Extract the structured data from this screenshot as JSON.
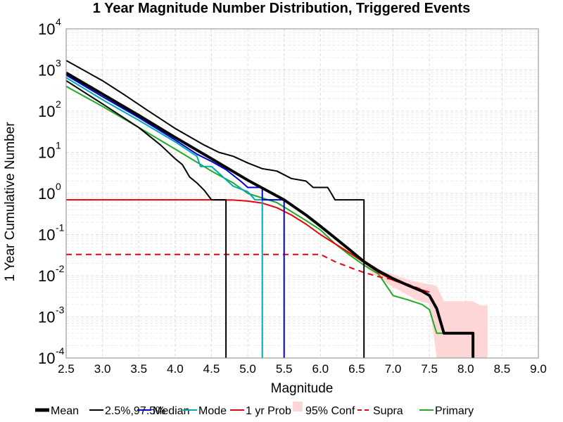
{
  "chart_data": {
    "type": "line",
    "title": "1 Year Magnitude Number Distribution, Triggered Events",
    "xlabel": "Magnitude",
    "ylabel": "1 Year Cumulative Number",
    "xlim": [
      2.5,
      9.0
    ],
    "ylim": [
      0.0001,
      10000
    ],
    "yscale": "log",
    "grid": true,
    "legend_position": "bottom",
    "x_ticks": [
      "2.5",
      "3.0",
      "3.5",
      "4.0",
      "4.5",
      "5.0",
      "5.5",
      "6.0",
      "6.5",
      "7.0",
      "7.5",
      "8.0",
      "8.5",
      "9.0"
    ],
    "y_ticks": [
      {
        "base": "10",
        "exp": "-4"
      },
      {
        "base": "10",
        "exp": "-3"
      },
      {
        "base": "10",
        "exp": "-2"
      },
      {
        "base": "10",
        "exp": "-1"
      },
      {
        "base": "10",
        "exp": "0"
      },
      {
        "base": "10",
        "exp": "1"
      },
      {
        "base": "10",
        "exp": "2"
      },
      {
        "base": "10",
        "exp": "3"
      },
      {
        "base": "10",
        "exp": "4"
      }
    ],
    "band": {
      "name": "95% Conf",
      "color": "#ffd6d6",
      "x": [
        6.6,
        6.7,
        6.8,
        6.9,
        7.0,
        7.1,
        7.2,
        7.3,
        7.4,
        7.5,
        7.6,
        7.7,
        7.8,
        7.9,
        8.0,
        8.1,
        8.2,
        8.3
      ],
      "upper": [
        0.025,
        0.019,
        0.015,
        0.012,
        0.011,
        0.0092,
        0.0082,
        0.0072,
        0.0066,
        0.0062,
        0.0057,
        0.0024,
        0.0024,
        0.0024,
        0.0024,
        0.0024,
        0.0019,
        0.0019
      ],
      "lower": [
        0.018,
        0.012,
        0.009,
        0.0068,
        0.0053,
        0.0043,
        0.0034,
        0.0027,
        0.0023,
        0.0021,
        0.0001,
        0.0001,
        0.0001,
        0.0001,
        0.0001,
        0.0001,
        0.0001,
        0.0001
      ]
    },
    "series": [
      {
        "name": "Mean",
        "color": "#000000",
        "width": 4,
        "dash": "",
        "x": [
          2.5,
          3.0,
          3.5,
          4.0,
          4.5,
          5.0,
          5.5,
          5.8,
          6.0,
          6.2,
          6.4,
          6.6,
          6.8,
          7.0,
          7.2,
          7.4,
          7.5,
          7.6,
          7.7,
          8.1,
          8.1
        ],
        "y": [
          850,
          260,
          79,
          23,
          7.0,
          2.1,
          0.7,
          0.3,
          0.16,
          0.083,
          0.043,
          0.022,
          0.013,
          0.0085,
          0.0059,
          0.0042,
          0.0033,
          0.0016,
          0.0004,
          0.0004,
          0.0001
        ]
      },
      {
        "name": "2.5%,97.5%",
        "color": "#000000",
        "width": 2,
        "dash": "",
        "x": [
          2.5,
          3.0,
          3.3,
          3.6,
          4.0,
          4.4,
          4.6,
          4.8,
          5.0,
          5.2,
          5.4,
          5.6,
          5.8,
          5.9,
          6.1,
          6.15,
          6.2,
          6.6,
          6.6
        ],
        "y": [
          1700,
          550,
          250,
          110,
          38,
          15,
          10,
          8,
          5.5,
          4.0,
          3.5,
          2.3,
          2.0,
          1.4,
          1.4,
          1.0,
          0.7,
          0.7,
          0.0001
        ]
      },
      {
        "name": "2.5%,97.5%",
        "color": "#000000",
        "width": 2,
        "dash": "",
        "x": [
          2.5,
          3.0,
          3.5,
          3.8,
          4.0,
          4.1,
          4.2,
          4.3,
          4.4,
          4.5,
          4.55,
          4.7,
          4.7
        ],
        "y": [
          550,
          150,
          40,
          15,
          7.0,
          5.0,
          2.5,
          1.8,
          1.2,
          0.7,
          0.7,
          0.7,
          0.0001
        ]
      },
      {
        "name": "Median",
        "color": "#0000cc",
        "width": 2,
        "dash": "",
        "x": [
          2.5,
          3.0,
          3.5,
          4.0,
          4.3,
          4.5,
          4.7,
          4.9,
          5.0,
          5.2,
          5.2,
          5.4,
          5.5,
          5.5
        ],
        "y": [
          750,
          225,
          70,
          20,
          9.0,
          6.0,
          3.8,
          2.0,
          1.4,
          1.4,
          0.7,
          0.7,
          0.7,
          0.0001
        ]
      },
      {
        "name": "Mode",
        "color": "#00a8b8",
        "width": 2,
        "dash": "",
        "x": [
          2.5,
          3.0,
          3.5,
          4.0,
          4.3,
          4.35,
          4.5,
          4.8,
          5.0,
          5.1,
          5.2,
          5.2
        ],
        "y": [
          650,
          190,
          60,
          18,
          8.0,
          4.5,
          4.5,
          1.5,
          1.1,
          0.7,
          0.7,
          0.0001
        ]
      },
      {
        "name": "1 yr Prob",
        "color": "#e8000b",
        "width": 2,
        "dash": "",
        "x": [
          2.5,
          3.0,
          3.5,
          4.0,
          4.5,
          4.8,
          5.0,
          5.2,
          5.4,
          5.6,
          5.8,
          6.0,
          6.2,
          6.4,
          6.6,
          6.8,
          7.0,
          7.2,
          7.4,
          7.5
        ],
        "y": [
          0.7,
          0.7,
          0.7,
          0.7,
          0.7,
          0.69,
          0.65,
          0.58,
          0.45,
          0.3,
          0.18,
          0.1,
          0.06,
          0.036,
          0.021,
          0.012,
          0.0078,
          0.0058,
          0.0045,
          0.004
        ]
      },
      {
        "name": "Supra",
        "color": "#e8000b",
        "width": 2,
        "dash": "8,6",
        "x": [
          2.5,
          3.0,
          3.5,
          4.0,
          4.5,
          5.0,
          5.5,
          6.0,
          6.2,
          6.4,
          6.6,
          6.8,
          7.0,
          7.2,
          7.4
        ],
        "y": [
          0.033,
          0.033,
          0.033,
          0.033,
          0.033,
          0.033,
          0.033,
          0.033,
          0.022,
          0.016,
          0.012,
          0.0095,
          0.008,
          0.0062,
          0.0046
        ]
      },
      {
        "name": "Primary",
        "color": "#22aa22",
        "width": 2,
        "dash": "",
        "x": [
          2.5,
          3.0,
          3.5,
          4.0,
          4.5,
          4.8,
          5.0,
          5.4,
          5.8,
          6.0,
          6.2,
          6.4,
          6.6,
          6.8,
          6.9,
          7.0,
          7.2,
          7.4,
          7.5,
          7.6,
          7.7
        ],
        "y": [
          400,
          130,
          40,
          12,
          3.5,
          1.8,
          1.0,
          0.6,
          0.22,
          0.13,
          0.06,
          0.032,
          0.018,
          0.011,
          0.006,
          0.0033,
          0.0026,
          0.002,
          0.0015,
          0.0004,
          0.0004
        ]
      }
    ],
    "legend": [
      {
        "label": "Mean",
        "color": "#000000",
        "width": 5,
        "dash": "",
        "kind": "line"
      },
      {
        "label": "2.5%,97.5%",
        "color": "#000000",
        "width": 2,
        "dash": "",
        "kind": "line"
      },
      {
        "label": "Median",
        "color": "#0000cc",
        "width": 2,
        "dash": "",
        "kind": "line"
      },
      {
        "label": "Mode",
        "color": "#00a8b8",
        "width": 2,
        "dash": "",
        "kind": "line"
      },
      {
        "label": "1 yr Prob",
        "color": "#e8000b",
        "width": 2,
        "dash": "",
        "kind": "line"
      },
      {
        "label": "95% Conf",
        "color": "#ffd6d6",
        "width": 0,
        "dash": "",
        "kind": "patch"
      },
      {
        "label": "Supra",
        "color": "#e8000b",
        "width": 2,
        "dash": "8,6",
        "kind": "line"
      },
      {
        "label": "Primary",
        "color": "#22aa22",
        "width": 2,
        "dash": "",
        "kind": "line"
      }
    ]
  }
}
